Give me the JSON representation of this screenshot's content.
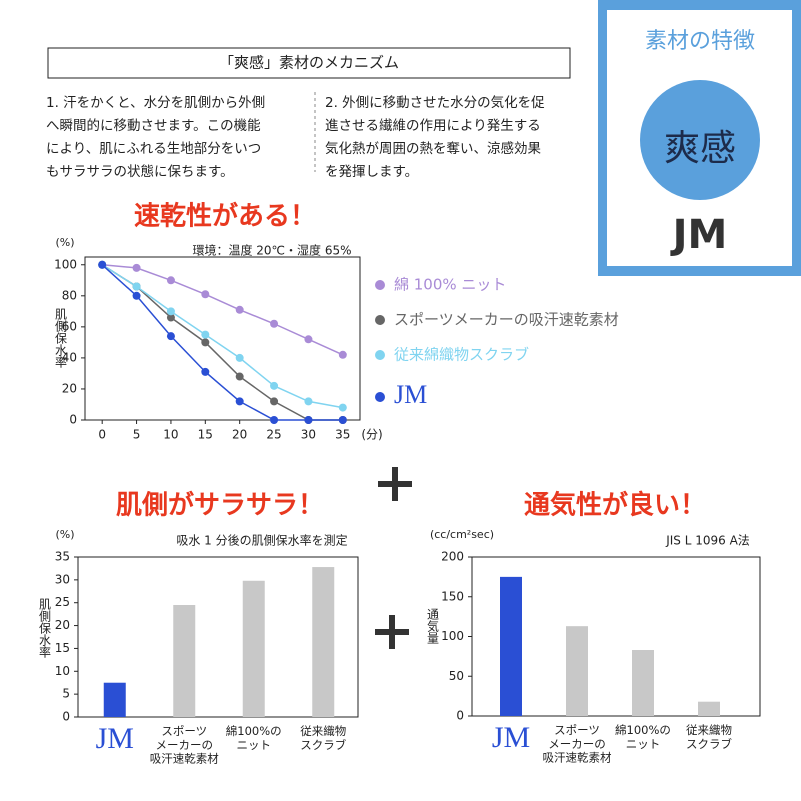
{
  "header": {
    "box_title": "「爽感」素材のメカニズム",
    "paragraphs": [
      {
        "lines": [
          "1. 汗をかくと、水分を肌側から外側",
          "へ瞬間的に移動させます。この機能",
          "により、肌にふれる生地部分をいつ",
          "もサラサラの状態に保ちます。"
        ]
      },
      {
        "lines": [
          "2. 外側に移動させた水分の気化を促",
          "進させる繊維の作用により発生する",
          "気化熱が周囲の熱を奪い、涼感効果",
          "を発揮します。"
        ]
      }
    ]
  },
  "badge": {
    "title": "素材の特徴",
    "name": "爽感",
    "brand": "JM"
  },
  "chart_data": [
    {
      "type": "line",
      "title": "速乾性がある！",
      "y_unit": "(%)",
      "x_unit": "(分)",
      "note": "環境：温度 20℃・湿度 65%",
      "y_label": "肌側保水率",
      "x": [
        0,
        5,
        10,
        15,
        20,
        25,
        30,
        35
      ],
      "xlim": [
        -2.5,
        37.5
      ],
      "xticks": [
        0,
        5,
        10,
        15,
        20,
        25,
        30,
        35
      ],
      "ylim": [
        0,
        105
      ],
      "yticks": [
        0,
        20,
        40,
        60,
        80,
        100
      ],
      "legend": "right",
      "series": [
        {
          "name": "綿 100% ニット",
          "color": "#a98bd6",
          "values": [
            100,
            98,
            90,
            81,
            71,
            62,
            52,
            42
          ]
        },
        {
          "name": "スポーツメーカーの吸汗速乾素材",
          "color": "#666666",
          "values": [
            100,
            86,
            66,
            50,
            28,
            12,
            0,
            0
          ]
        },
        {
          "name": "従来綿織物スクラブ",
          "color": "#80d4f0",
          "values": [
            100,
            86,
            70,
            55,
            40,
            22,
            12,
            8
          ]
        },
        {
          "name": "JM",
          "color": "#2a4fd4",
          "values": [
            100,
            80,
            54,
            31,
            12,
            0,
            0,
            0
          ]
        }
      ]
    },
    {
      "type": "bar",
      "title": "肌側がサラサラ！",
      "y_unit": "(%)",
      "note": "吸水 1 分後の肌側保水率を測定",
      "y_label": "肌側保水率",
      "categories": [
        "JM",
        "スポーツ\nメーカーの\n吸汗速乾素材",
        "綿100%の\nニット",
        "従来織物\nスクラブ"
      ],
      "values": [
        7.5,
        24.5,
        29.8,
        32.8
      ],
      "colors": [
        "#2a4fd4",
        "#c8c8c8",
        "#c8c8c8",
        "#c8c8c8"
      ],
      "ylim": [
        0,
        35
      ],
      "yticks": [
        0,
        5,
        10,
        15,
        20,
        25,
        30,
        35
      ]
    },
    {
      "type": "bar",
      "title": "通気性が良い！",
      "y_unit": "(cc/cm²sec)",
      "note": "JIS L 1096  A法",
      "y_label": "通気量",
      "categories": [
        "JM",
        "スポーツ\nメーカーの\n吸汗速乾素材",
        "綿100%の\nニット",
        "従来織物\nスクラブ"
      ],
      "values": [
        175,
        113,
        83,
        18
      ],
      "colors": [
        "#2a4fd4",
        "#c8c8c8",
        "#c8c8c8",
        "#c8c8c8"
      ],
      "ylim": [
        0,
        200
      ],
      "yticks": [
        0,
        50,
        100,
        150,
        200
      ]
    }
  ]
}
